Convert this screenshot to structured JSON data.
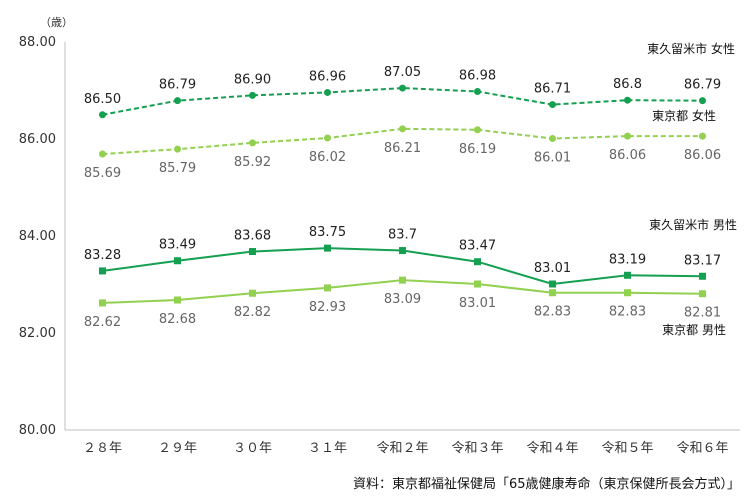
{
  "chart_data": {
    "type": "line",
    "unit_label": "（歳）",
    "ylim": [
      80,
      88
    ],
    "yticks": [
      "80.00",
      "82.00",
      "84.00",
      "86.00",
      "88.00"
    ],
    "categories": [
      "２８年",
      "２９年",
      "３０年",
      "３１年",
      "令和２年",
      "令和３年",
      "令和４年",
      "令和５年",
      "令和６年"
    ],
    "grid": false,
    "series": [
      {
        "name": "東久留米市 女性",
        "values": [
          86.5,
          86.79,
          86.9,
          86.96,
          87.05,
          86.98,
          86.71,
          86.8,
          86.79
        ],
        "labels": [
          "86.50",
          "86.79",
          "86.90",
          "86.96",
          "87.05",
          "86.98",
          "86.71",
          "86.8",
          "86.79"
        ],
        "color": "#14A050",
        "dashed": true,
        "marker": "circle",
        "label_position": "above"
      },
      {
        "name": "東京都 女性",
        "values": [
          85.69,
          85.79,
          85.92,
          86.02,
          86.21,
          86.19,
          86.01,
          86.06,
          86.06
        ],
        "labels": [
          "85.69",
          "85.79",
          "85.92",
          "86.02",
          "86.21",
          "86.19",
          "86.01",
          "86.06",
          "86.06"
        ],
        "color": "#92D050",
        "dashed": true,
        "marker": "circle",
        "label_position": "below"
      },
      {
        "name": "東久留米市 男性",
        "values": [
          83.28,
          83.49,
          83.68,
          83.75,
          83.7,
          83.47,
          83.01,
          83.19,
          83.17
        ],
        "labels": [
          "83.28",
          "83.49",
          "83.68",
          "83.75",
          "83.7",
          "83.47",
          "83.01",
          "83.19",
          "83.17"
        ],
        "color": "#14A050",
        "dashed": false,
        "marker": "square",
        "label_position": "above"
      },
      {
        "name": "東京都 男性",
        "values": [
          82.62,
          82.68,
          82.82,
          82.93,
          83.09,
          83.01,
          82.83,
          82.83,
          82.81
        ],
        "labels": [
          "82.62",
          "82.68",
          "82.82",
          "82.93",
          "83.09",
          "83.01",
          "82.83",
          "82.83",
          "82.81"
        ],
        "color": "#92D050",
        "dashed": false,
        "marker": "square",
        "label_position": "below"
      }
    ],
    "source": "資料：東京都福祉保健局「65歳健康寿命（東京保健所長会方式）」"
  }
}
